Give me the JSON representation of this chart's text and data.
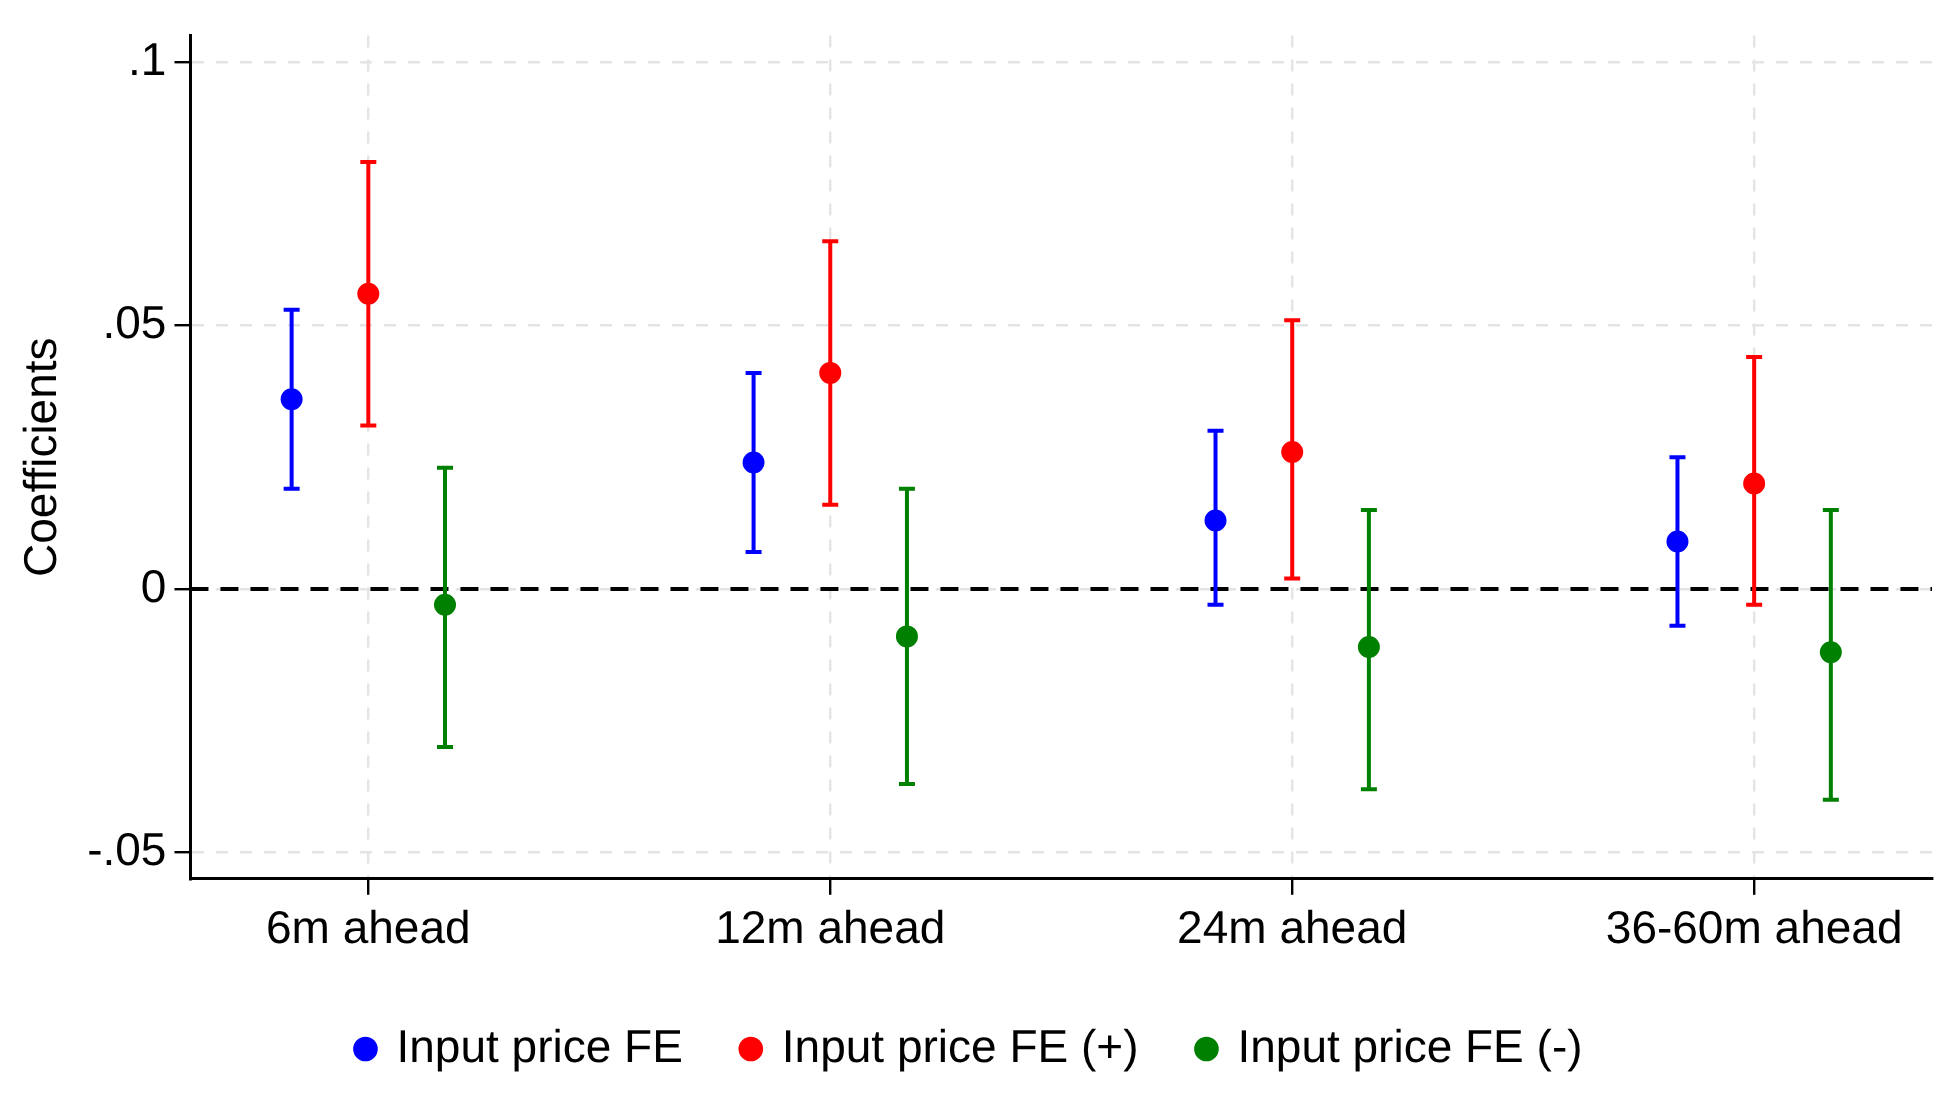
{
  "chart_data": {
    "type": "scatter",
    "ylabel": "Coefficients",
    "categories": [
      "6m ahead",
      "12m ahead",
      "24m ahead",
      "36-60m ahead"
    ],
    "series": [
      {
        "name": "Input price FE",
        "color": "#0000ff",
        "values": [
          0.036,
          0.024,
          0.013,
          0.009
        ],
        "errors": [
          [
            0.019,
            0.053
          ],
          [
            0.007,
            0.041
          ],
          [
            -0.003,
            0.03
          ],
          [
            -0.007,
            0.025
          ]
        ]
      },
      {
        "name": "Input price FE (+)",
        "color": "#ff0000",
        "values": [
          0.056,
          0.041,
          0.026,
          0.02
        ],
        "errors": [
          [
            0.031,
            0.081
          ],
          [
            0.016,
            0.066
          ],
          [
            0.002,
            0.051
          ],
          [
            -0.003,
            0.044
          ]
        ]
      },
      {
        "name": "Input price FE (-)",
        "color": "#008000",
        "values": [
          -0.003,
          -0.009,
          -0.011,
          -0.012
        ],
        "errors": [
          [
            -0.03,
            0.023
          ],
          [
            -0.037,
            0.019
          ],
          [
            -0.038,
            0.015
          ],
          [
            -0.04,
            0.015
          ]
        ]
      }
    ],
    "ylim": [
      -0.055,
      0.105
    ],
    "yticks": [
      {
        "value": -0.05,
        "label": "-.05"
      },
      0,
      {
        "value": 0.05,
        "label": ".05"
      },
      {
        "value": 0.1,
        "label": ".1"
      }
    ],
    "ref_lines": [
      {
        "axis": "y",
        "value": 0,
        "color": "#000000",
        "line_style": "dashed"
      }
    ],
    "grid": true,
    "legend": "bottom",
    "marker": "circle"
  }
}
